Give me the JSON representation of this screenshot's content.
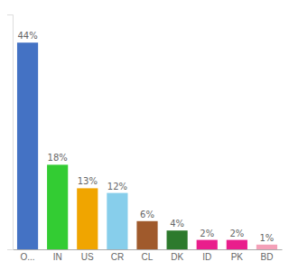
{
  "chart_data": {
    "type": "bar",
    "categories": [
      "O...",
      "IN",
      "US",
      "CR",
      "CL",
      "DK",
      "ID",
      "PK",
      "BD"
    ],
    "values": [
      44,
      18,
      13,
      12,
      6,
      4,
      2,
      2,
      1
    ],
    "value_labels": [
      "44%",
      "18%",
      "13%",
      "12%",
      "6%",
      "4%",
      "2%",
      "2%",
      "1%"
    ],
    "colors": [
      "#4472c4",
      "#33cc33",
      "#f0a500",
      "#87ceeb",
      "#a05a2c",
      "#2d7a2d",
      "#e91e8c",
      "#e91e8c",
      "#f4a0b8"
    ],
    "ylim": [
      0,
      50
    ],
    "data_labels": true,
    "tick_labels": "x"
  }
}
